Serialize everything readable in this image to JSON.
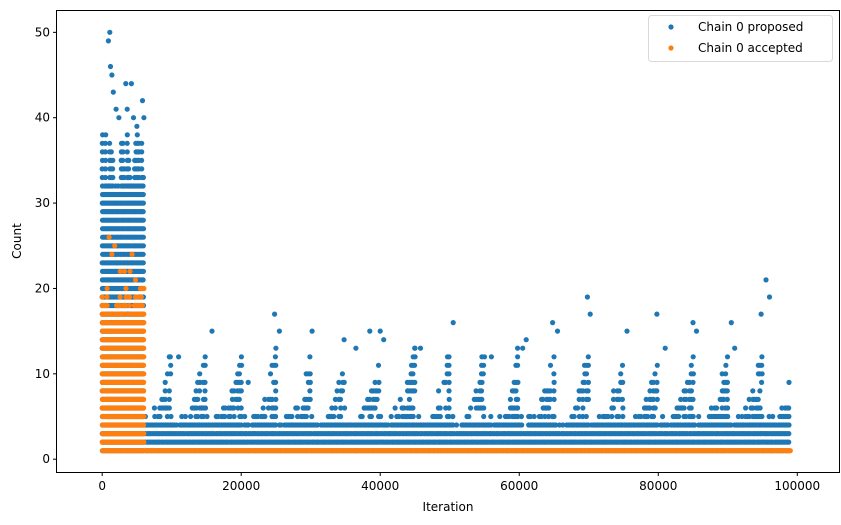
{
  "colors": {
    "proposed": "#1f77b4",
    "accepted": "#ff7f0e",
    "axis": "#000000",
    "legend_border": "#d9d9d9"
  },
  "chart_data": {
    "type": "scatter",
    "title": "",
    "xlabel": "Iteration",
    "ylabel": "Count",
    "xlim": [
      -6500,
      106000
    ],
    "ylim": [
      -1.5,
      52.5
    ],
    "xticks": [
      0,
      20000,
      40000,
      60000,
      80000,
      100000
    ],
    "yticks": [
      0,
      10,
      20,
      30,
      40,
      50
    ],
    "grid": false,
    "legend_position": "top-right",
    "series": [
      {
        "name": "Chain 0 proposed",
        "color": "#1f77b4",
        "marker": "circle",
        "description_points": [
          [
            500,
            38
          ],
          [
            900,
            49
          ],
          [
            1100,
            50
          ],
          [
            1200,
            46
          ],
          [
            1400,
            45
          ],
          [
            1600,
            43
          ],
          [
            2000,
            41
          ],
          [
            2400,
            40
          ],
          [
            3400,
            44
          ],
          [
            3600,
            41
          ],
          [
            4200,
            44
          ],
          [
            4500,
            40
          ],
          [
            5000,
            39
          ],
          [
            5800,
            42
          ],
          [
            6000,
            40
          ],
          [
            9800,
            12
          ],
          [
            11000,
            12
          ],
          [
            15800,
            15
          ],
          [
            20000,
            9
          ],
          [
            21000,
            9
          ],
          [
            24800,
            17
          ],
          [
            25500,
            15
          ],
          [
            30200,
            15
          ],
          [
            34800,
            14
          ],
          [
            36500,
            13
          ],
          [
            38500,
            15
          ],
          [
            40000,
            15
          ],
          [
            40500,
            14
          ],
          [
            45000,
            13
          ],
          [
            45800,
            13
          ],
          [
            50500,
            16
          ],
          [
            55000,
            12
          ],
          [
            56000,
            12
          ],
          [
            60500,
            13
          ],
          [
            61000,
            14
          ],
          [
            64800,
            16
          ],
          [
            65500,
            15
          ],
          [
            69800,
            19
          ],
          [
            70200,
            17
          ],
          [
            75500,
            15
          ],
          [
            79800,
            17
          ],
          [
            81000,
            13
          ],
          [
            85000,
            16
          ],
          [
            85500,
            15
          ],
          [
            90500,
            16
          ],
          [
            91000,
            13
          ],
          [
            94800,
            17
          ],
          [
            95500,
            21
          ],
          [
            96000,
            19
          ],
          [
            98800,
            9
          ]
        ]
      },
      {
        "name": "Chain 0 accepted",
        "color": "#ff7f0e",
        "marker": "circle",
        "description_points": [
          [
            1000,
            26
          ],
          [
            1400,
            24
          ],
          [
            1800,
            25
          ],
          [
            2600,
            22
          ],
          [
            3200,
            22
          ],
          [
            4000,
            22
          ],
          [
            4300,
            24
          ],
          [
            4800,
            21
          ],
          [
            5500,
            20
          ],
          [
            6000,
            20
          ],
          [
            6200,
            1
          ],
          [
            50000,
            1
          ],
          [
            99000,
            1
          ]
        ]
      }
    ]
  }
}
